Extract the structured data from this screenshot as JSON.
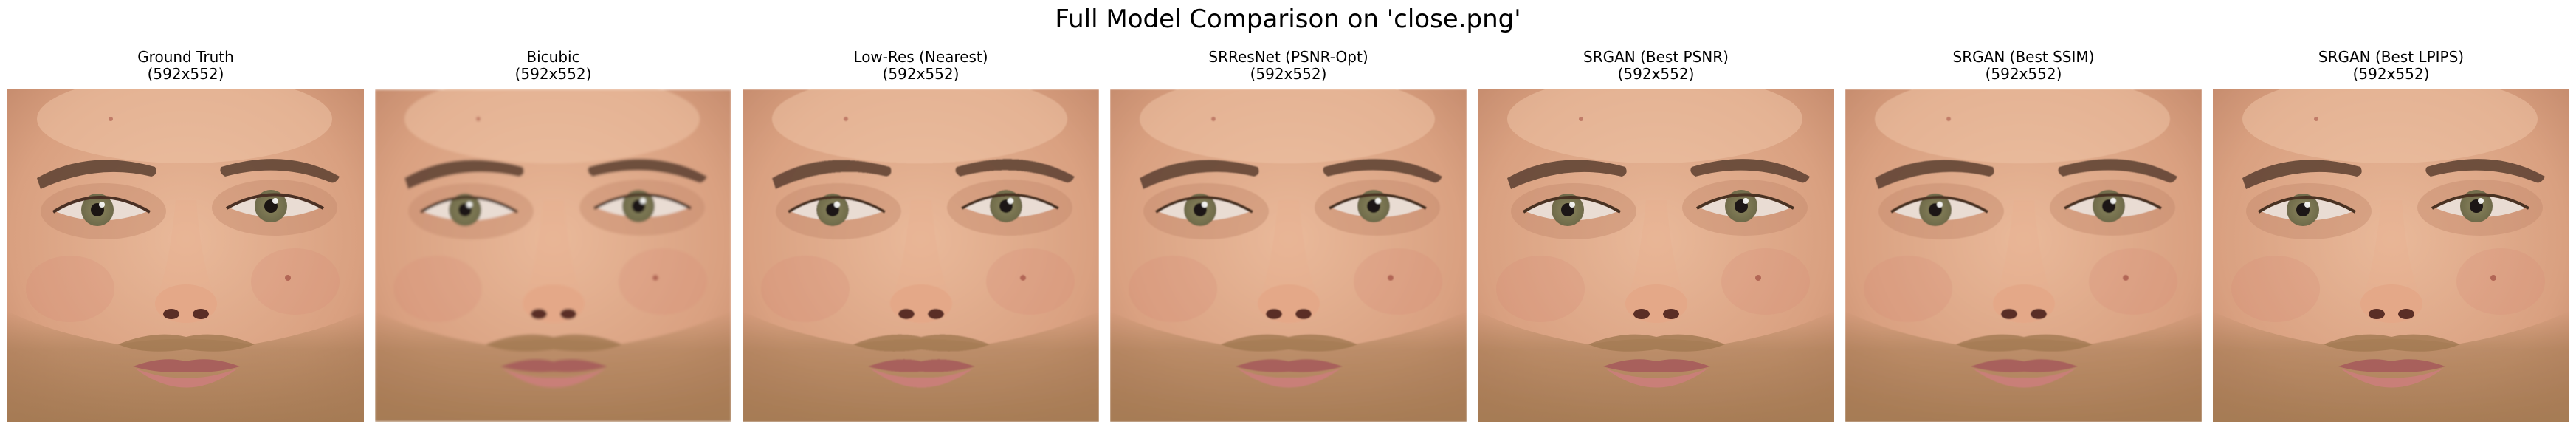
{
  "figure": {
    "title": "Full Model Comparison on 'close.png'"
  },
  "panels": [
    {
      "method": "Ground Truth",
      "size": "(592x552)",
      "blur": 0,
      "pixelated": false
    },
    {
      "method": "Bicubic",
      "size": "(592x552)",
      "blur": 1.6,
      "pixelated": false
    },
    {
      "method": "Low-Res (Nearest)",
      "size": "(592x552)",
      "blur": 0.9,
      "pixelated": true
    },
    {
      "method": "SRResNet (PSNR-Opt)",
      "size": "(592x552)",
      "blur": 0.9,
      "pixelated": false
    },
    {
      "method": "SRGAN (Best PSNR)",
      "size": "(592x552)",
      "blur": 0.3,
      "pixelated": false
    },
    {
      "method": "SRGAN (Best SSIM)",
      "size": "(592x552)",
      "blur": 0.4,
      "pixelated": false
    },
    {
      "method": "SRGAN (Best LPIPS)",
      "size": "(592x552)",
      "blur": 0.3,
      "pixelated": false
    }
  ],
  "colors": {
    "skin_light": "#e9b99a",
    "skin_mid": "#d9a080",
    "skin_shadow": "#c48a6c",
    "brow": "#5a3f30",
    "iris": "#6e6a4a",
    "pupil": "#1b1512",
    "beard": "#a07850",
    "lip": "#c97f78",
    "lip_dark": "#a8605c"
  },
  "icons": {
    "face_image": "face-photo"
  }
}
